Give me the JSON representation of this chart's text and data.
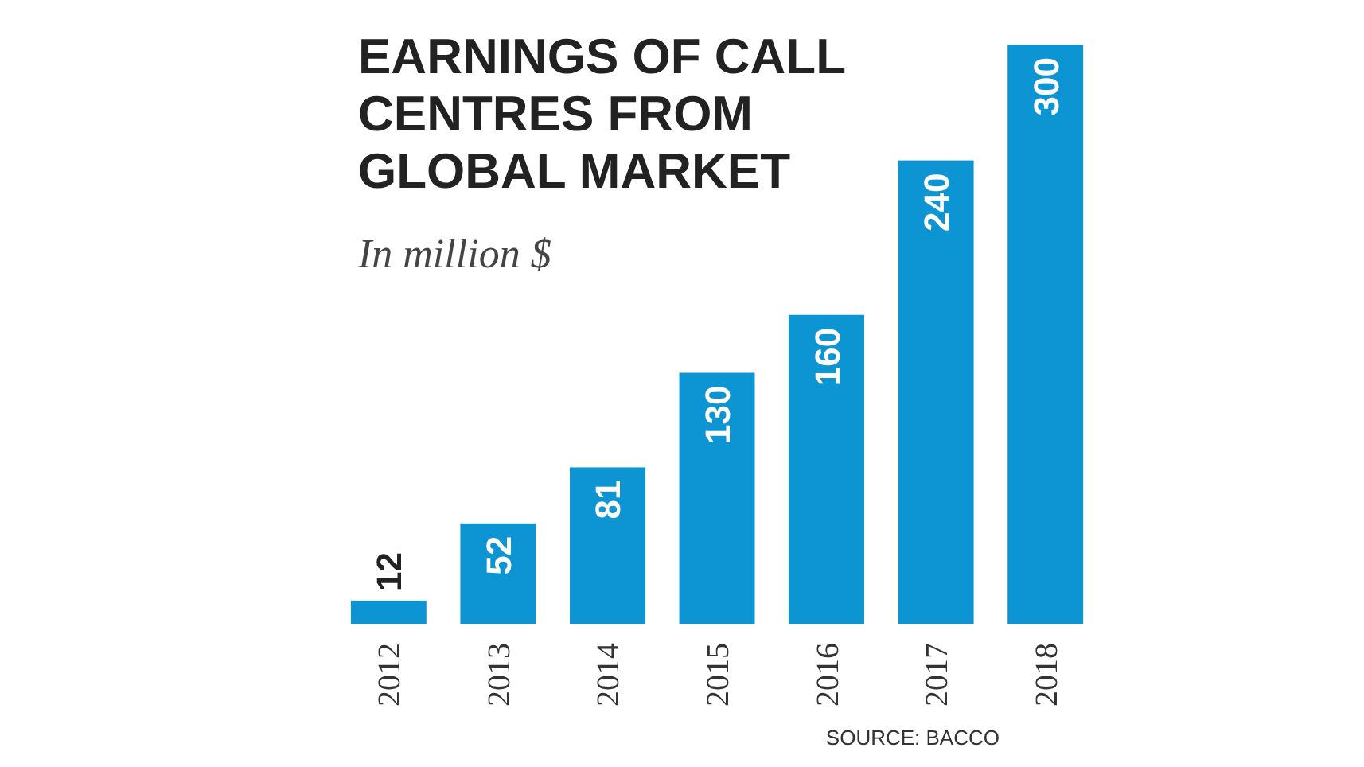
{
  "chart_data": {
    "type": "bar",
    "title": "EARNINGS OF CALL CENTRES FROM GLOBAL MARKET",
    "subtitle": "In million $",
    "categories": [
      "2012",
      "2013",
      "2014",
      "2015",
      "2016",
      "2017",
      "2018"
    ],
    "values": [
      12,
      52,
      81,
      130,
      160,
      240,
      300
    ],
    "color": "#0d94d2",
    "data_labels": true,
    "annotations": [
      "SOURCE: BACCO"
    ]
  }
}
